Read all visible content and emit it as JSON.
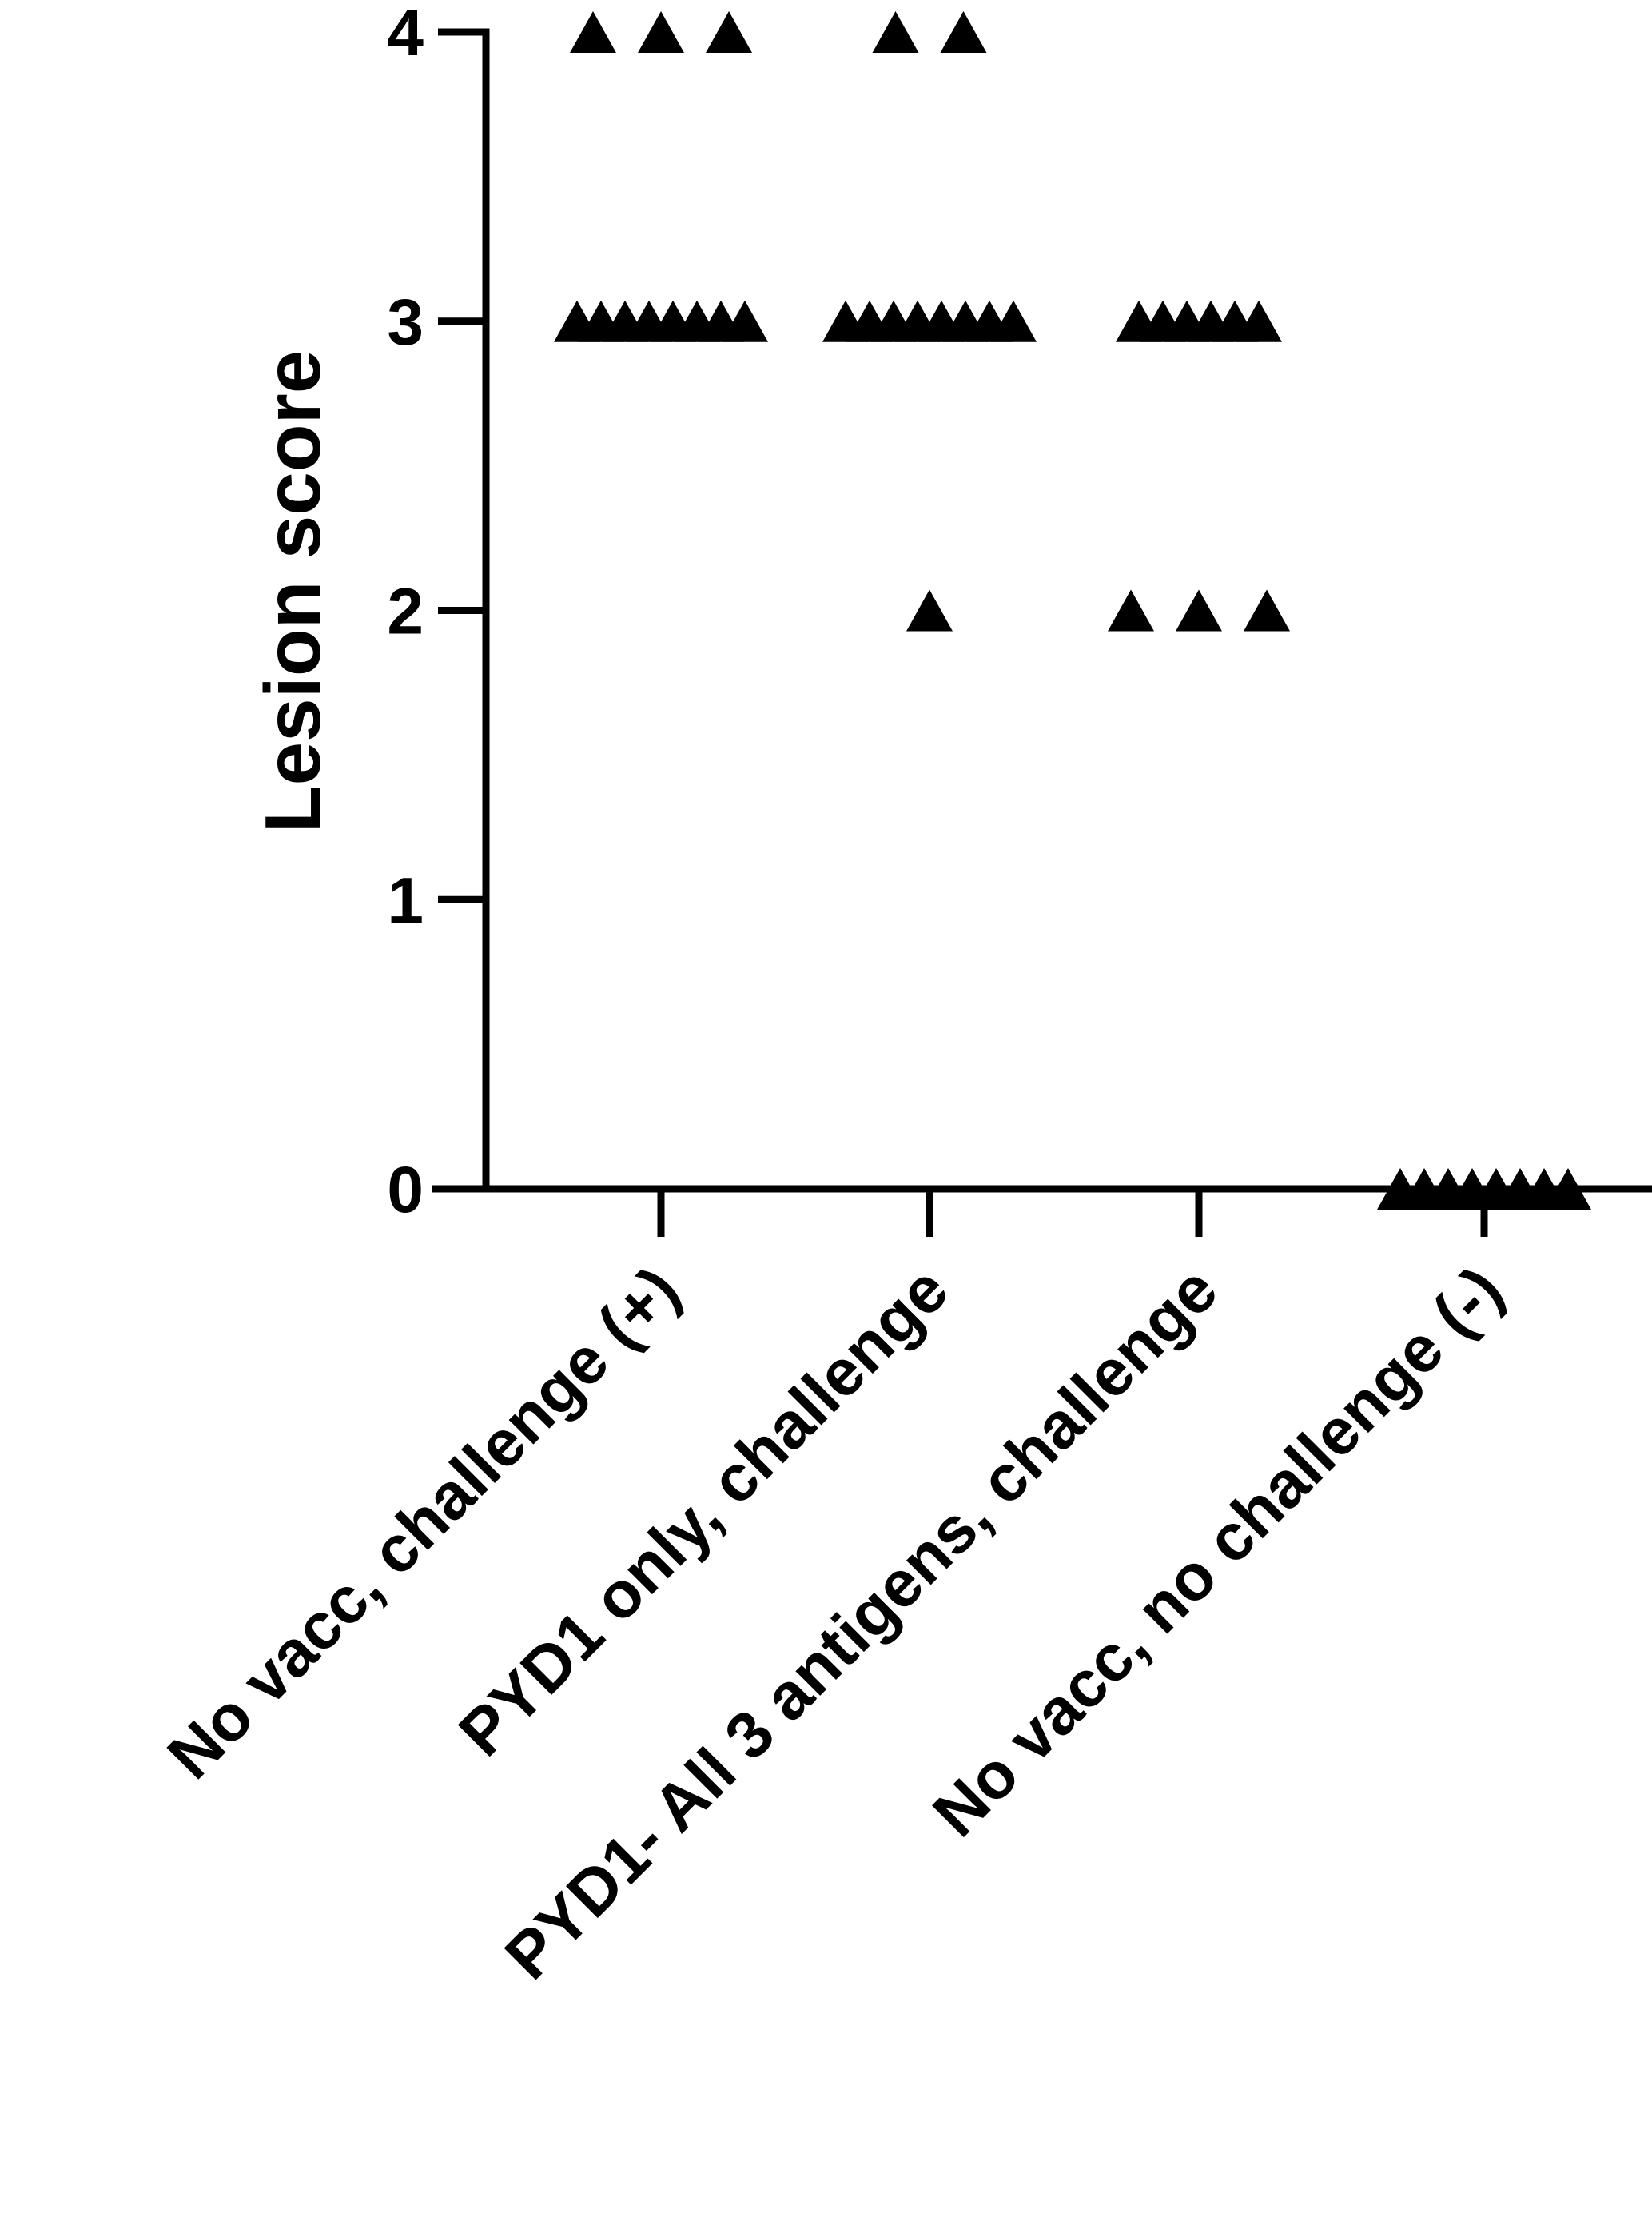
{
  "chart_data": {
    "type": "scatter",
    "title": "",
    "xlabel": "",
    "ylabel": "Lesion score",
    "ylim": [
      0,
      4
    ],
    "yticks": [
      0,
      1,
      2,
      3,
      4
    ],
    "grid": false,
    "marker": "triangle",
    "marker_color": "#000000",
    "categories": [
      "No vacc, challenge (+)",
      "PYD1 only, challenge",
      "PYD1- All 3 antigens, challenge",
      "No vacc, no challenge (-)"
    ],
    "series": [
      {
        "category": "No vacc, challenge (+)",
        "values": [
          4,
          4,
          4,
          3,
          3,
          3,
          3,
          3,
          3,
          3,
          3
        ]
      },
      {
        "category": "PYD1 only, challenge",
        "values": [
          4,
          4,
          3,
          3,
          3,
          3,
          3,
          3,
          3,
          3,
          2
        ]
      },
      {
        "category": "PYD1- All 3 antigens, challenge",
        "values": [
          3,
          3,
          3,
          3,
          3,
          3,
          2,
          2,
          2
        ]
      },
      {
        "category": "No vacc, no challenge (-)",
        "values": [
          0,
          0,
          0,
          0,
          0,
          0,
          0,
          0
        ]
      }
    ]
  }
}
